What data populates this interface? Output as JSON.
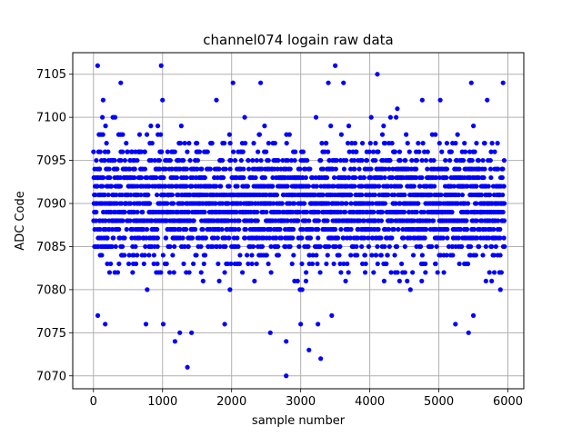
{
  "colors": {
    "marker": "#0000ff",
    "grid": "#b0b0b0",
    "background": "#ffffff"
  },
  "chart_data": {
    "type": "scatter",
    "title": "channel074 logain raw data",
    "xlabel": "sample number",
    "ylabel": "ADC Code",
    "xlim": [
      -300,
      6230
    ],
    "ylim": [
      7068.5,
      7107.5
    ],
    "xticks": [
      0,
      1000,
      2000,
      3000,
      4000,
      5000,
      6000
    ],
    "yticks": [
      7070,
      7075,
      7080,
      7085,
      7090,
      7095,
      7100,
      7105
    ],
    "grid": true,
    "marker": "dot",
    "series": [
      {
        "n_samples": 6000,
        "x_range": [
          0,
          5950
        ],
        "y_min": 7070,
        "y_max": 7106,
        "dense_band": [
          7082,
          7098
        ],
        "outliers": [
          {
            "x": 60,
            "y": 7106
          },
          {
            "x": 980,
            "y": 7106
          },
          {
            "x": 3500,
            "y": 7106
          },
          {
            "x": 4110,
            "y": 7105
          },
          {
            "x": 395,
            "y": 7104
          },
          {
            "x": 2020,
            "y": 7104
          },
          {
            "x": 2420,
            "y": 7104
          },
          {
            "x": 3400,
            "y": 7104
          },
          {
            "x": 3620,
            "y": 7104
          },
          {
            "x": 5470,
            "y": 7104
          },
          {
            "x": 5930,
            "y": 7104
          },
          {
            "x": 140,
            "y": 7102
          },
          {
            "x": 1000,
            "y": 7102
          },
          {
            "x": 1780,
            "y": 7102
          },
          {
            "x": 4760,
            "y": 7102
          },
          {
            "x": 5020,
            "y": 7102
          },
          {
            "x": 5700,
            "y": 7102
          },
          {
            "x": 1180,
            "y": 7074
          },
          {
            "x": 1360,
            "y": 7071
          },
          {
            "x": 3120,
            "y": 7073
          },
          {
            "x": 3290,
            "y": 7072
          },
          {
            "x": 2790,
            "y": 7070
          },
          {
            "x": 2790,
            "y": 7074
          },
          {
            "x": 2560,
            "y": 7075
          },
          {
            "x": 5430,
            "y": 7075
          },
          {
            "x": 1250,
            "y": 7075
          },
          {
            "x": 1420,
            "y": 7075
          },
          {
            "x": 170,
            "y": 7076
          },
          {
            "x": 760,
            "y": 7076
          },
          {
            "x": 1010,
            "y": 7076
          },
          {
            "x": 1900,
            "y": 7076
          },
          {
            "x": 3000,
            "y": 7076
          },
          {
            "x": 3250,
            "y": 7076
          },
          {
            "x": 5240,
            "y": 7076
          },
          {
            "x": 3450,
            "y": 7077
          },
          {
            "x": 5500,
            "y": 7077
          }
        ]
      }
    ]
  }
}
